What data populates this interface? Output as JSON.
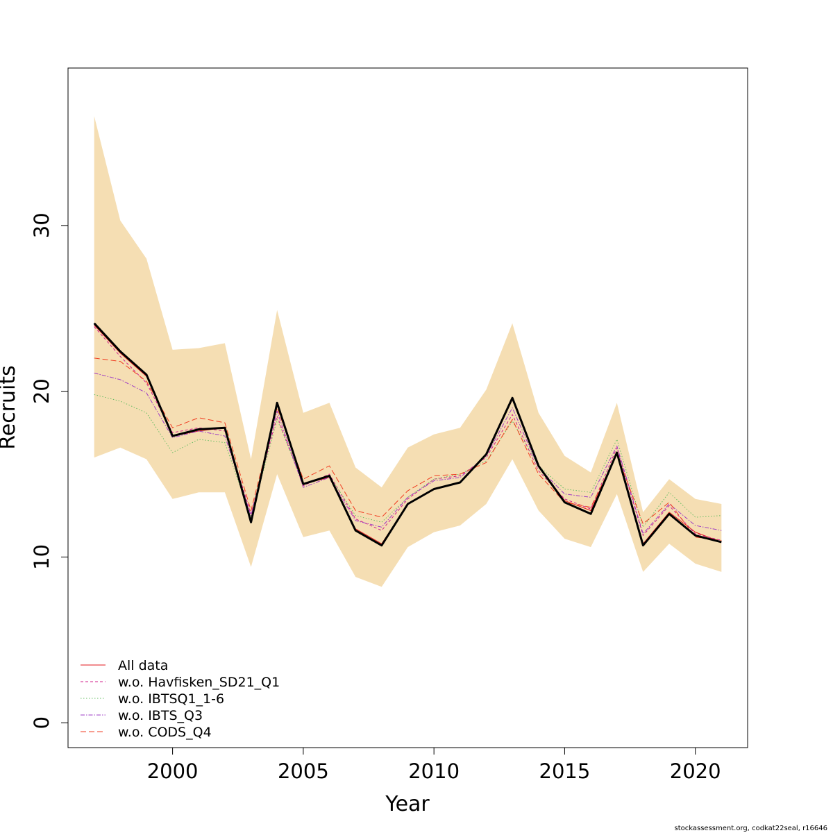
{
  "chart_data": {
    "type": "line",
    "title": "",
    "xlabel": "Year",
    "ylabel": "Recruits",
    "xlim": [
      1996.0,
      2022.0
    ],
    "ylim": [
      -1.5,
      39.5
    ],
    "x_ticks": [
      2000,
      2005,
      2010,
      2015,
      2020
    ],
    "y_ticks": [
      0,
      10,
      20,
      30
    ],
    "grid": false,
    "legend_position": "bottom-left",
    "x": [
      1997,
      1998,
      1999,
      2000,
      2001,
      2002,
      2003,
      2004,
      2005,
      2006,
      2007,
      2008,
      2009,
      2010,
      2011,
      2012,
      2013,
      2014,
      2015,
      2016,
      2017,
      2018,
      2019,
      2020,
      2021
    ],
    "confidence_band": {
      "color": "#F5DEB3",
      "upper": [
        36.6,
        30.3,
        28.0,
        22.5,
        22.6,
        22.9,
        15.9,
        24.9,
        18.7,
        19.3,
        15.4,
        14.2,
        16.6,
        17.4,
        17.8,
        20.1,
        24.1,
        18.7,
        16.1,
        15.1,
        19.3,
        12.7,
        14.7,
        13.5,
        13.2
      ],
      "lower": [
        16.0,
        16.6,
        15.9,
        13.5,
        13.9,
        13.9,
        9.4,
        15.0,
        11.2,
        11.6,
        8.8,
        8.2,
        10.6,
        11.5,
        11.9,
        13.2,
        15.9,
        12.8,
        11.1,
        10.6,
        13.8,
        9.1,
        10.8,
        9.6,
        9.1
      ]
    },
    "series": [
      {
        "name": "All data",
        "color": "#E31A1C",
        "dash": "solid",
        "values": [
          24.0,
          22.3,
          20.9,
          17.3,
          17.6,
          17.8,
          12.2,
          19.2,
          14.4,
          14.8,
          11.7,
          10.8,
          13.2,
          14.1,
          14.5,
          16.2,
          19.5,
          15.5,
          13.4,
          12.8,
          16.3,
          10.8,
          12.7,
          11.5,
          10.9
        ]
      },
      {
        "name": "w.o. Havfisken_SD21_Q1",
        "color": "#D01C8B",
        "dash": "4,3",
        "values": [
          23.9,
          22.1,
          20.5,
          17.5,
          17.8,
          17.6,
          12.6,
          18.5,
          14.3,
          15.0,
          12.3,
          11.6,
          13.5,
          14.7,
          14.9,
          16.0,
          18.6,
          15.2,
          13.5,
          12.9,
          16.6,
          11.3,
          13.1,
          11.4,
          11.0
        ]
      },
      {
        "name": "w.o. IBTSQ1_1-6",
        "color": "#66BD63",
        "dash": "1.5,2.5",
        "values": [
          19.8,
          19.4,
          18.7,
          16.3,
          17.1,
          16.9,
          12.4,
          18.3,
          14.4,
          14.9,
          12.5,
          12.1,
          13.6,
          14.7,
          15.0,
          15.8,
          18.2,
          15.5,
          14.1,
          13.9,
          17.1,
          11.8,
          13.9,
          12.4,
          12.5
        ]
      },
      {
        "name": "w.o. IBTS_Q3",
        "color": "#9E3BC4",
        "dash": "6,2,1.5,2",
        "values": [
          21.1,
          20.7,
          19.9,
          17.2,
          17.6,
          17.3,
          12.5,
          18.8,
          14.2,
          14.8,
          12.2,
          11.8,
          13.6,
          14.6,
          14.8,
          16.1,
          19.0,
          15.4,
          13.8,
          13.6,
          16.7,
          11.4,
          13.2,
          11.9,
          11.6
        ]
      },
      {
        "name": "w.o. CODS_Q4",
        "color": "#F03B20",
        "dash": "8,4",
        "values": [
          22.0,
          21.8,
          20.6,
          17.8,
          18.4,
          18.1,
          12.8,
          19.0,
          14.7,
          15.5,
          12.8,
          12.4,
          14.0,
          14.9,
          15.0,
          15.7,
          18.3,
          15.0,
          13.3,
          13.0,
          16.2,
          12.0,
          13.3,
          11.2,
          11.0
        ]
      },
      {
        "name": "",
        "color": "#000000",
        "dash": "solid",
        "values": [
          24.1,
          22.4,
          21.0,
          17.3,
          17.7,
          17.8,
          12.1,
          19.3,
          14.4,
          14.9,
          11.6,
          10.7,
          13.2,
          14.1,
          14.5,
          16.2,
          19.6,
          15.5,
          13.3,
          12.6,
          16.3,
          10.7,
          12.6,
          11.3,
          10.9
        ]
      }
    ]
  },
  "footer": {
    "credit": "stockassessment.org, codkat22seal, r16646"
  }
}
